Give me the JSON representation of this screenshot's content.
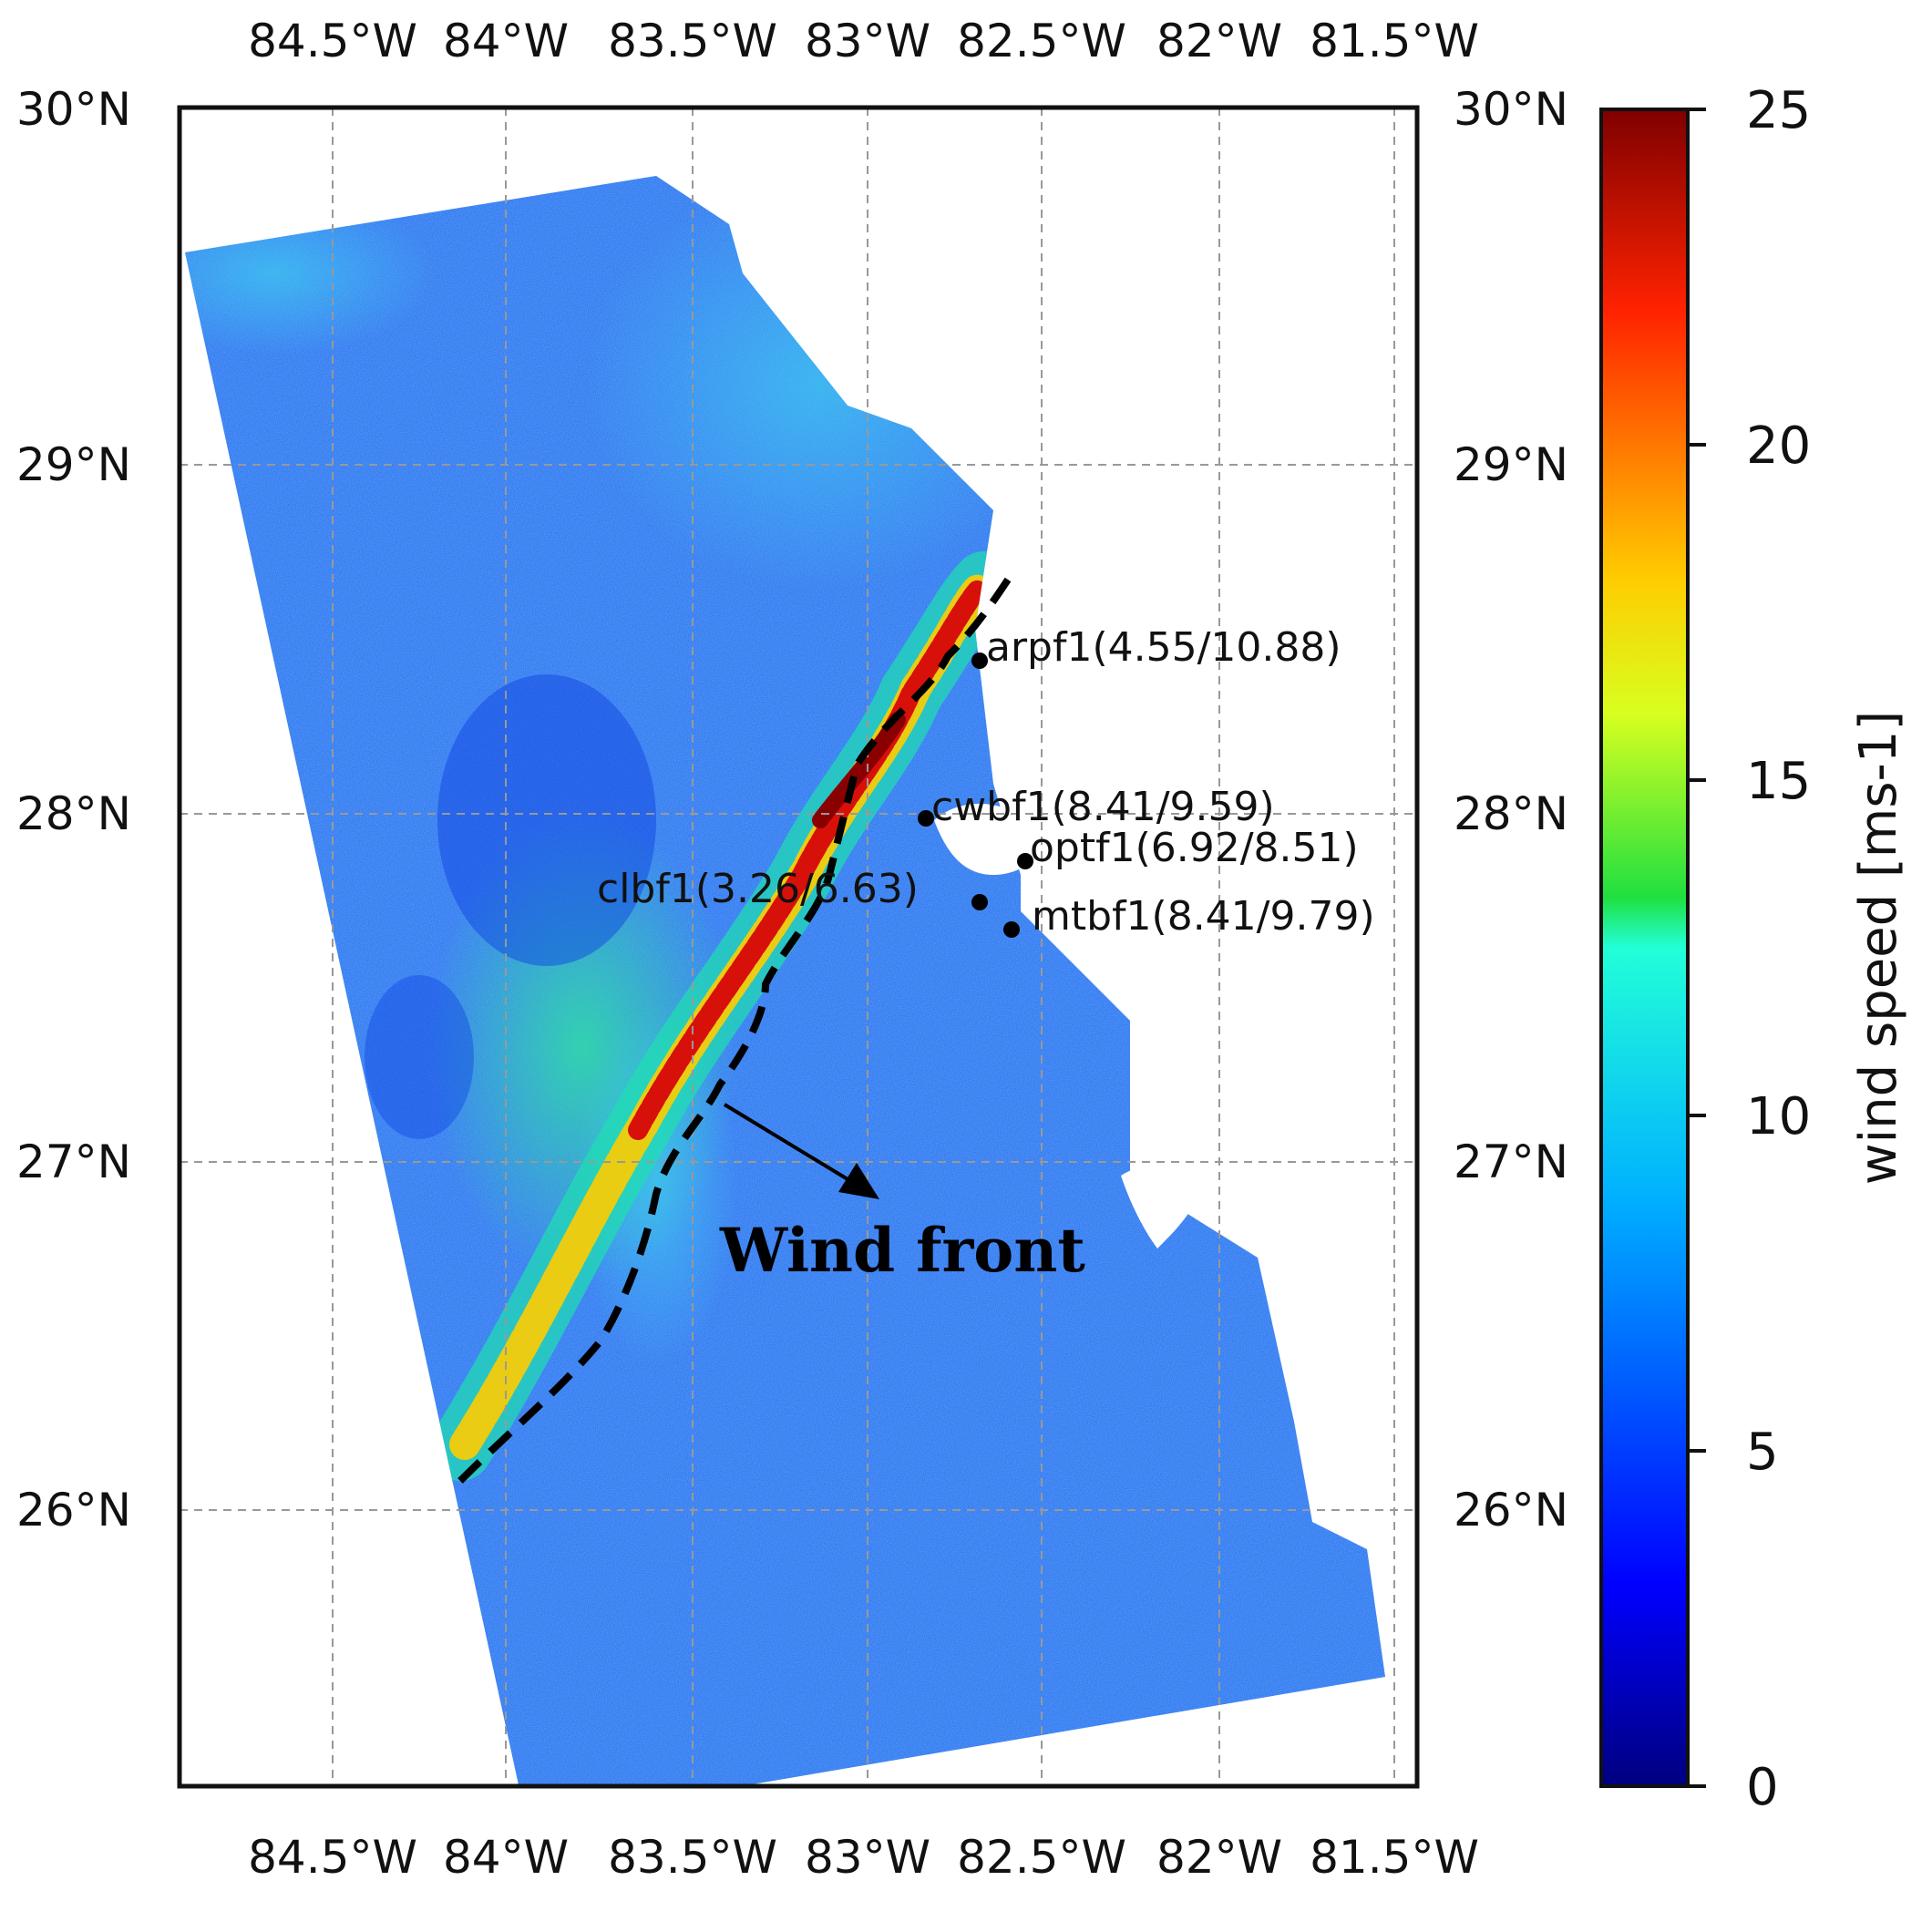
{
  "map": {
    "top_axis_ticks": [
      "84.5°W",
      "84°W",
      "83.5°W",
      "83°W",
      "82.5°W",
      "82°W",
      "81.5°W"
    ],
    "bottom_axis_ticks": [
      "84.5°W",
      "84°W",
      "83.5°W",
      "83°W",
      "82.5°W",
      "82°W",
      "81.5°W"
    ],
    "left_axis_ticks": [
      "30°N",
      "29°N",
      "28°N",
      "27°N",
      "26°N"
    ],
    "right_axis_ticks": [
      "30°N",
      "29°N",
      "28°N",
      "27°N",
      "26°N"
    ],
    "stations": [
      {
        "label": "arpf1(4.55/10.88)"
      },
      {
        "label": "cwbf1(8.41/9.59)"
      },
      {
        "label": "optf1(6.92/8.51)"
      },
      {
        "label": "clbf1(3.26/6.63)"
      },
      {
        "label": "mtbf1(8.41/9.79)"
      }
    ],
    "annotation": "Wind front",
    "colors": {
      "sea": "#1f6ff0",
      "land": "#ffffff",
      "front_line": "#000000",
      "grid": "#999999"
    }
  },
  "colorbar": {
    "label": "wind speed [ms-1]",
    "ticks": [
      "25",
      "20",
      "15",
      "10",
      "5",
      "0"
    ],
    "range": [
      0,
      25
    ],
    "colormap": "jet"
  }
}
